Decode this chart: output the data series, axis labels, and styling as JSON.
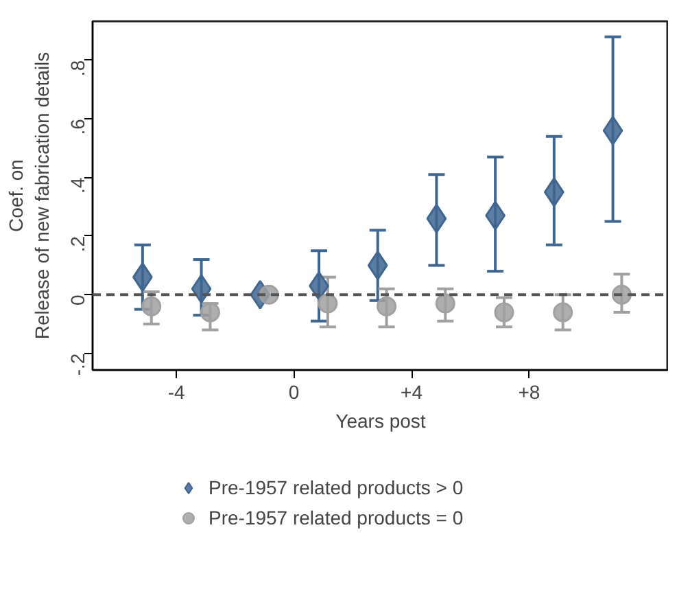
{
  "chart_data": {
    "type": "scatter",
    "xlabel": "Years post",
    "ylabel": "Coef. on\nRelease of new fabrication details",
    "xlim": [
      -6.85,
      12.75
    ],
    "ylim": [
      -0.257,
      0.933
    ],
    "xticks": [
      {
        "value": -4,
        "label": "-4"
      },
      {
        "value": 0,
        "label": "0"
      },
      {
        "value": 4,
        "label": "+4"
      },
      {
        "value": 8,
        "label": "+8"
      }
    ],
    "yticks": [
      {
        "value": -0.2,
        "label": "-.2"
      },
      {
        "value": 0,
        "label": "0"
      },
      {
        "value": 0.2,
        "label": ".2"
      },
      {
        "value": 0.4,
        "label": ".4"
      },
      {
        "value": 0.6,
        "label": ".6"
      },
      {
        "value": 0.8,
        "label": ".8"
      }
    ],
    "grid": false,
    "legend": "bottom",
    "ref_lines": [
      {
        "axis": "y",
        "value": 0,
        "color": "#555555",
        "line_style": "dashed"
      }
    ],
    "series": [
      {
        "name": "Pre-1957 related products > 0",
        "color": "#3f6690",
        "marker": "diamond",
        "x": [
          -5.15,
          -3.15,
          -1.15,
          0.85,
          2.85,
          4.85,
          6.85,
          8.85,
          10.85
        ],
        "values": [
          0.06,
          0.02,
          0,
          0.03,
          0.1,
          0.26,
          0.27,
          0.35,
          0.56
        ],
        "errors": [
          [
            -0.05,
            0.17
          ],
          [
            -0.07,
            0.12
          ],
          null,
          [
            -0.09,
            0.15
          ],
          [
            -0.02,
            0.22
          ],
          [
            0.1,
            0.41
          ],
          [
            0.08,
            0.47
          ],
          [
            0.17,
            0.54
          ],
          [
            0.25,
            0.88
          ]
        ]
      },
      {
        "name": "Pre-1957 related products = 0",
        "color": "#a0a0a0",
        "marker": "circle",
        "x": [
          -4.85,
          -2.85,
          -0.85,
          1.15,
          3.15,
          5.15,
          7.15,
          9.15,
          11.15
        ],
        "values": [
          -0.04,
          -0.06,
          0,
          -0.03,
          -0.04,
          -0.03,
          -0.06,
          -0.06,
          0.0
        ],
        "errors": [
          [
            -0.1,
            0.01
          ],
          [
            -0.12,
            -0.03
          ],
          null,
          [
            -0.11,
            0.06
          ],
          [
            -0.11,
            0.02
          ],
          [
            -0.09,
            0.02
          ],
          [
            -0.11,
            -0.01
          ],
          [
            -0.12,
            0.0
          ],
          [
            -0.06,
            0.07
          ]
        ]
      }
    ]
  }
}
